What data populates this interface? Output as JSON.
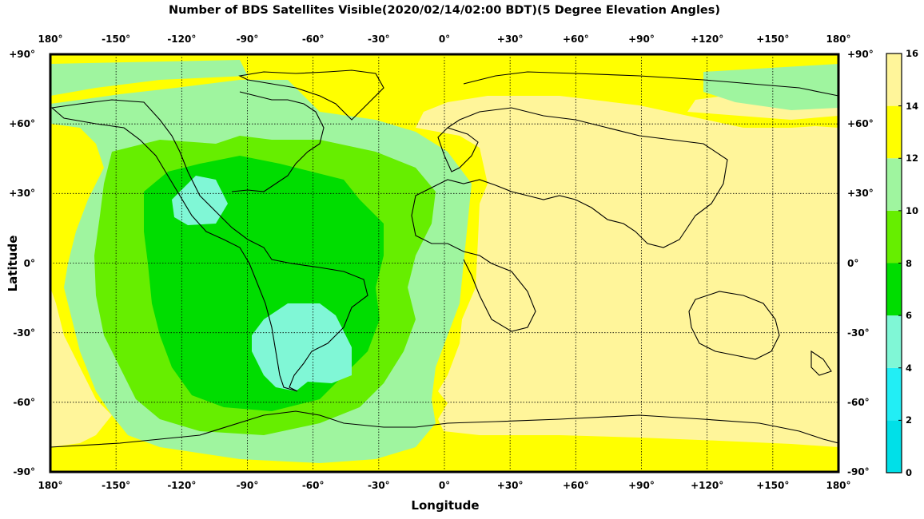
{
  "title": "Number of BDS Satellites Visible(2020/02/14/02:00 BDT)(5 Degree Elevation Angles)",
  "xlabel": "Longitude",
  "ylabel": "Latitude",
  "lon_ticks": [
    "180°",
    "-150°",
    "-120°",
    "-90°",
    "-60°",
    "-30°",
    "0°",
    "+30°",
    "+60°",
    "+90°",
    "+120°",
    "+150°",
    "180°"
  ],
  "lat_ticks": [
    "+90°",
    "+60°",
    "+30°",
    "0°",
    "-30°",
    "-60°",
    "-90°"
  ],
  "colorbar": {
    "ticks": [
      "16",
      "14",
      "12",
      "10",
      "8",
      "6",
      "4",
      "2",
      "0"
    ],
    "bins": [
      {
        "range": [
          0,
          2
        ],
        "color": "#00e0e8"
      },
      {
        "range": [
          2,
          4
        ],
        "color": "#22eef5"
      },
      {
        "range": [
          4,
          6
        ],
        "color": "#80f7d6"
      },
      {
        "range": [
          6,
          8
        ],
        "color": "#00dd00"
      },
      {
        "range": [
          8,
          10
        ],
        "color": "#66ee00"
      },
      {
        "range": [
          10,
          12
        ],
        "color": "#9ff59f"
      },
      {
        "range": [
          12,
          14
        ],
        "color": "#ffff00"
      },
      {
        "range": [
          14,
          16
        ],
        "color": "#fff59a"
      }
    ]
  },
  "map_regions": [
    {
      "name": "eastern-hemisphere",
      "value_bin": "14-16"
    },
    {
      "name": "pacific-rim",
      "value_bin": "12-14"
    },
    {
      "name": "americas-atlantic",
      "value_bin": "10-12"
    },
    {
      "name": "central-americas",
      "value_bin": "8-10"
    },
    {
      "name": "core-americas",
      "value_bin": "6-8"
    },
    {
      "name": "south-america-south",
      "value_bin": "4-6"
    }
  ]
}
